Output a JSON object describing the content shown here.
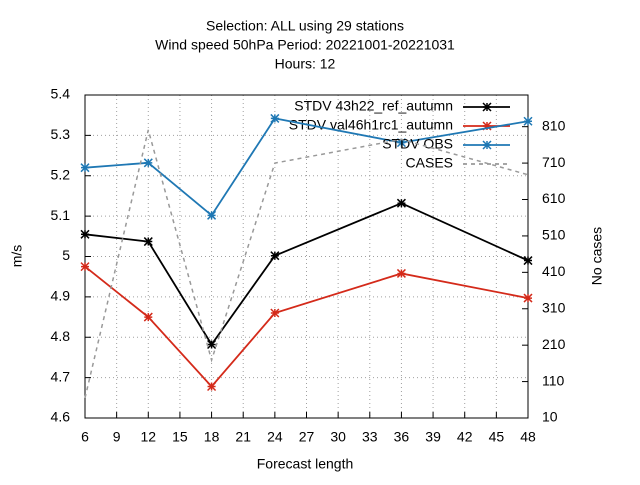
{
  "chart_data": {
    "type": "line",
    "title": [
      "Selection: ALL using     29 stations",
      "Wind speed 50hPa   Period: 20221001-20221031",
      "Hours:  12"
    ],
    "xlabel": "Forecast length",
    "ylabel": "m/s",
    "y2label": "No cases",
    "x": [
      6,
      12,
      18,
      24,
      36,
      48
    ],
    "xlim": [
      6,
      48
    ],
    "xticks": [
      6,
      9,
      12,
      15,
      18,
      21,
      24,
      27,
      30,
      33,
      36,
      39,
      42,
      45,
      48
    ],
    "ylim": [
      4.6,
      5.4
    ],
    "yticks": [
      4.6,
      4.7,
      4.8,
      4.9,
      5,
      5.1,
      5.2,
      5.3,
      5.4
    ],
    "y2lim": [
      10,
      897
    ],
    "y2ticks": [
      10,
      110,
      210,
      310,
      410,
      510,
      610,
      710,
      810
    ],
    "grid": true,
    "legend": "top-right",
    "series": [
      {
        "name": "STDV 43h22_ref_autumn",
        "color": "#000000",
        "values": [
          5.055,
          5.037,
          4.782,
          5.002,
          5.132,
          4.99
        ]
      },
      {
        "name": "STDV val46h1rc1_autumn",
        "color": "#d42a1a",
        "values": [
          4.975,
          4.85,
          4.678,
          4.86,
          4.958,
          4.897
        ]
      },
      {
        "name": "STDV OBS",
        "color": "#1f78b4",
        "values": [
          5.22,
          5.232,
          5.102,
          5.342,
          5.282,
          5.335
        ]
      },
      {
        "name": "CASES",
        "color": "#999999",
        "axis": "y2",
        "dashed": true,
        "values": [
          65,
          801,
          169,
          710,
          775,
          678
        ]
      }
    ]
  }
}
